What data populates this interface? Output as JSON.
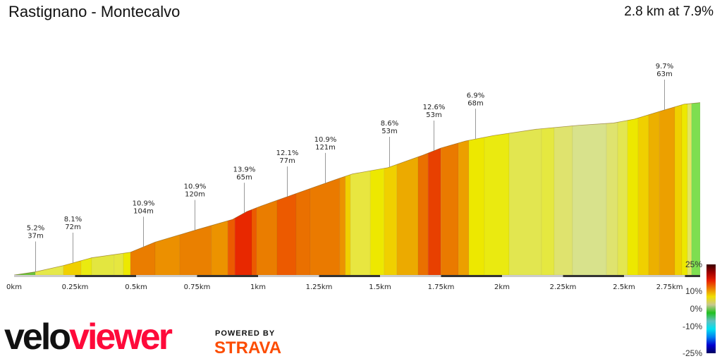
{
  "header": {
    "title": "Rastignano - Montecalvo",
    "summary": "2.8 km at 7.9%"
  },
  "chart_data": {
    "type": "area",
    "xlabel": "",
    "ylabel": "",
    "xlim": [
      0,
      2.812
    ],
    "x_ticks": [
      "0km",
      "0.25km",
      "0.5km",
      "0.75km",
      "1km",
      "1.25km",
      "1.5km",
      "1.75km",
      "2km",
      "2.25km",
      "2.5km",
      "2.75km"
    ],
    "x_tick_values": [
      0,
      0.25,
      0.5,
      0.75,
      1,
      1.25,
      1.5,
      1.75,
      2,
      2.25,
      2.5,
      2.75
    ],
    "profile": [
      [
        0,
        0
      ],
      [
        0.087,
        4
      ],
      [
        0.202,
        12
      ],
      [
        0.318,
        22
      ],
      [
        0.477,
        29
      ],
      [
        0.578,
        42
      ],
      [
        0.751,
        58
      ],
      [
        0.896,
        71
      ],
      [
        0.954,
        81
      ],
      [
        1.012,
        88
      ],
      [
        1.156,
        104
      ],
      [
        1.329,
        123
      ],
      [
        1.387,
        129
      ],
      [
        1.532,
        137
      ],
      [
        1.676,
        153
      ],
      [
        1.749,
        162
      ],
      [
        1.85,
        171
      ],
      [
        1.965,
        178
      ],
      [
        2.139,
        186
      ],
      [
        2.312,
        191
      ],
      [
        2.457,
        194
      ],
      [
        2.543,
        199
      ],
      [
        2.659,
        210
      ],
      [
        2.746,
        218
      ],
      [
        2.812,
        220
      ]
    ],
    "segments": [
      [
        0,
        0.087,
        "#6cc23a"
      ],
      [
        0.087,
        0.202,
        "#e5e84a"
      ],
      [
        0.202,
        0.275,
        "#f0d000"
      ],
      [
        0.275,
        0.318,
        "#eaea10"
      ],
      [
        0.318,
        0.41,
        "#e3e640"
      ],
      [
        0.41,
        0.448,
        "#e6e640"
      ],
      [
        0.448,
        0.477,
        "#ede800"
      ],
      [
        0.477,
        0.578,
        "#ea7d00"
      ],
      [
        0.578,
        0.679,
        "#ec9000"
      ],
      [
        0.679,
        0.809,
        "#ea8000"
      ],
      [
        0.809,
        0.876,
        "#ec9300"
      ],
      [
        0.876,
        0.905,
        "#ec5a00"
      ],
      [
        0.905,
        0.974,
        "#e82800"
      ],
      [
        0.974,
        0.994,
        "#ec5a00"
      ],
      [
        0.994,
        1.078,
        "#ea7d00"
      ],
      [
        1.078,
        1.156,
        "#ec5a00"
      ],
      [
        1.156,
        1.214,
        "#ea7000"
      ],
      [
        1.214,
        1.335,
        "#ea7a00"
      ],
      [
        1.335,
        1.358,
        "#ec9300"
      ],
      [
        1.358,
        1.379,
        "#f0d000"
      ],
      [
        1.379,
        1.46,
        "#e8e640"
      ],
      [
        1.46,
        1.517,
        "#ede800"
      ],
      [
        1.517,
        1.569,
        "#f0d000"
      ],
      [
        1.569,
        1.656,
        "#ecaa00"
      ],
      [
        1.656,
        1.697,
        "#ea7000"
      ],
      [
        1.697,
        1.749,
        "#e84000"
      ],
      [
        1.749,
        1.821,
        "#ea7a00"
      ],
      [
        1.821,
        1.864,
        "#ec9f00"
      ],
      [
        1.864,
        1.928,
        "#ede800"
      ],
      [
        1.928,
        2.029,
        "#eaea10"
      ],
      [
        2.029,
        2.162,
        "#e2e650"
      ],
      [
        2.162,
        2.214,
        "#e5e840"
      ],
      [
        2.214,
        2.289,
        "#dfe36e"
      ],
      [
        2.289,
        2.428,
        "#d8e28c"
      ],
      [
        2.428,
        2.474,
        "#dfe36e"
      ],
      [
        2.474,
        2.514,
        "#e3e650"
      ],
      [
        2.514,
        2.558,
        "#ede800"
      ],
      [
        2.558,
        2.601,
        "#f0d000"
      ],
      [
        2.601,
        2.645,
        "#ecb000"
      ],
      [
        2.645,
        2.708,
        "#eca000"
      ],
      [
        2.708,
        2.737,
        "#f0d000"
      ],
      [
        2.737,
        2.76,
        "#ede800"
      ],
      [
        2.76,
        2.777,
        "#e3e660"
      ],
      [
        2.777,
        2.812,
        "#7ede50"
      ]
    ],
    "annotations": [
      {
        "km": 0.087,
        "grade": "5.2%",
        "length": "37m"
      },
      {
        "km": 0.24,
        "grade": "8.1%",
        "length": "72m"
      },
      {
        "km": 0.529,
        "grade": "10.9%",
        "length": "104m"
      },
      {
        "km": 0.74,
        "grade": "10.9%",
        "length": "120m"
      },
      {
        "km": 0.942,
        "grade": "13.9%",
        "length": "65m"
      },
      {
        "km": 1.118,
        "grade": "12.1%",
        "length": "77m"
      },
      {
        "km": 1.275,
        "grade": "10.9%",
        "length": "121m"
      },
      {
        "km": 1.538,
        "grade": "8.6%",
        "length": "53m"
      },
      {
        "km": 1.72,
        "grade": "12.6%",
        "length": "53m"
      },
      {
        "km": 1.89,
        "grade": "6.9%",
        "length": "68m"
      },
      {
        "km": 2.665,
        "grade": "9.7%",
        "length": "63m"
      }
    ],
    "legend": {
      "labels": [
        "25%",
        "10%",
        "0%",
        "-10%",
        "-25%"
      ],
      "values": [
        25,
        10,
        0,
        -10,
        -25
      ],
      "colors": [
        "#3a0000",
        "#a00000",
        "#e82000",
        "#ec8000",
        "#f0e000",
        "#c8c890",
        "#20c020",
        "#60c0c0",
        "#00e0f0",
        "#0080f0",
        "#0000d0",
        "#000060"
      ]
    }
  },
  "branding": {
    "logo_velo": "velo",
    "logo_viewer": "viewer",
    "powered_by": "POWERED BY",
    "strava": "STRAVA"
  }
}
